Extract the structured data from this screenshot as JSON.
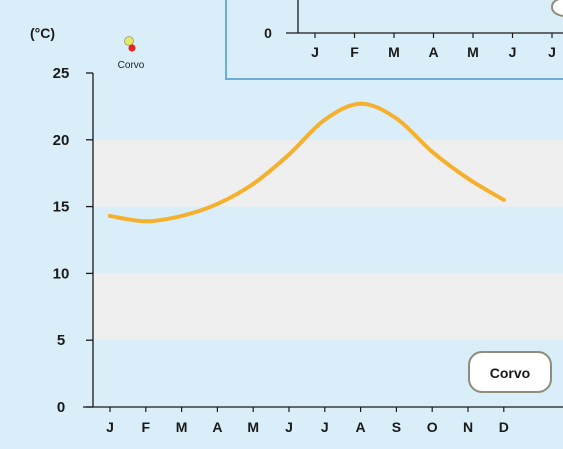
{
  "chart_data": [
    {
      "type": "line",
      "ylabel": "(°C)",
      "yticks": [
        0,
        5,
        10,
        15,
        20,
        25
      ],
      "ylim": [
        0,
        25
      ],
      "categories": [
        "J",
        "F",
        "M",
        "A",
        "M",
        "J",
        "J",
        "A",
        "S",
        "O",
        "N",
        "D"
      ],
      "series": [
        {
          "name": "Corvo",
          "values": [
            14.3,
            13.9,
            14.3,
            15.2,
            16.7,
            18.9,
            21.5,
            22.7,
            21.6,
            19.1,
            17.1,
            15.5
          ]
        }
      ],
      "legend": {
        "label": "Corvo",
        "placement": "top-left"
      },
      "badge": "Corvo",
      "grid": "alternating horizontal bands",
      "colors": {
        "line": "#f5b02e",
        "background": "#d9eef9",
        "band": "#efefef",
        "axis": "#1a1a1a",
        "legend_dot": "#e52521",
        "legend_dot_halo": "#e6e86a"
      }
    },
    {
      "type": "line",
      "note": "partially visible inset chart (cropped)",
      "yticks_visible": [
        "0"
      ],
      "categories": [
        "J",
        "F",
        "M",
        "A",
        "M",
        "J",
        "J"
      ],
      "colors": {
        "border": "#6aaed6",
        "background": "#d9eef9"
      }
    }
  ]
}
